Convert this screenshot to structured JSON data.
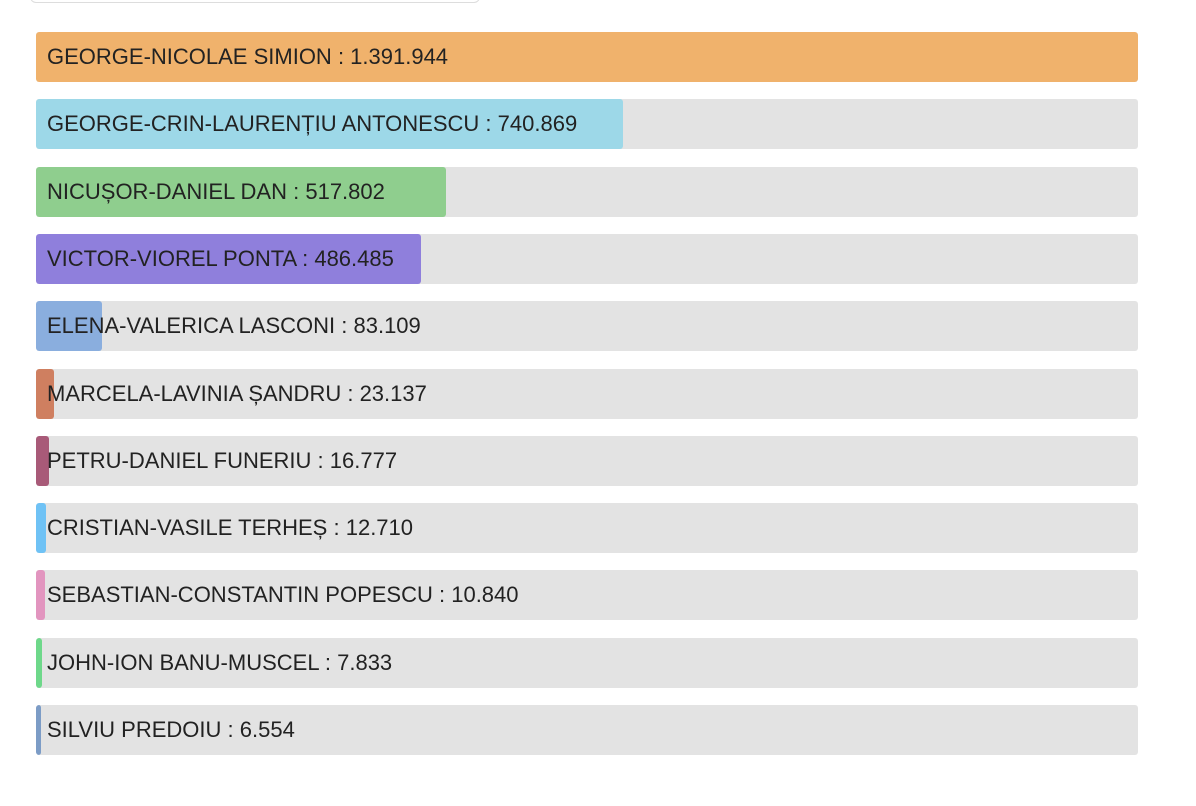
{
  "chart_data": {
    "type": "bar",
    "orientation": "horizontal",
    "categories": [
      "GEORGE-NICOLAE SIMION",
      "GEORGE-CRIN-LAURENȚIU ANTONESCU",
      "NICUȘOR-DANIEL DAN",
      "VICTOR-VIOREL PONTA",
      "ELENA-VALERICA LASCONI",
      "MARCELA-LAVINIA ȘANDRU",
      "PETRU-DANIEL FUNERIU",
      "CRISTIAN-VASILE TERHEȘ",
      "SEBASTIAN-CONSTANTIN POPESCU",
      "JOHN-ION BANU-MUSCEL",
      "SILVIU PREDOIU"
    ],
    "label_separator": " : ",
    "values": [
      1391944,
      740869,
      517802,
      486485,
      83109,
      23137,
      16777,
      12710,
      10840,
      7833,
      6554
    ],
    "value_labels": [
      "1.391.944",
      "740.869",
      "517.802",
      "486.485",
      "83.109",
      "23.137",
      "16.777",
      "12.710",
      "10.840",
      "7.833",
      "6.554"
    ],
    "colors": [
      "#f0b26c",
      "#9dd8e8",
      "#8fce8e",
      "#8f7fdc",
      "#8aaede",
      "#cf7f60",
      "#a85a78",
      "#6fc2f5",
      "#e295bf",
      "#6ed88a",
      "#7c9cc6"
    ],
    "xlim": [
      0,
      1391944
    ]
  }
}
